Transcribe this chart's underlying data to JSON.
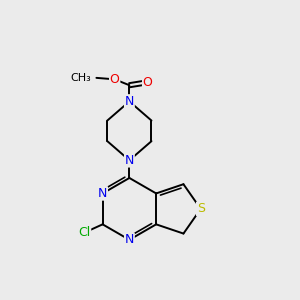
{
  "background_color": "#ebebeb",
  "bond_color": "#000000",
  "atom_colors": {
    "N": "#0000ee",
    "O": "#ee0000",
    "S": "#bbbb00",
    "Cl": "#00aa00",
    "C": "#000000"
  },
  "figsize": [
    3.0,
    3.0
  ],
  "dpi": 100,
  "bond_lw": 1.4,
  "font_size": 9.0
}
